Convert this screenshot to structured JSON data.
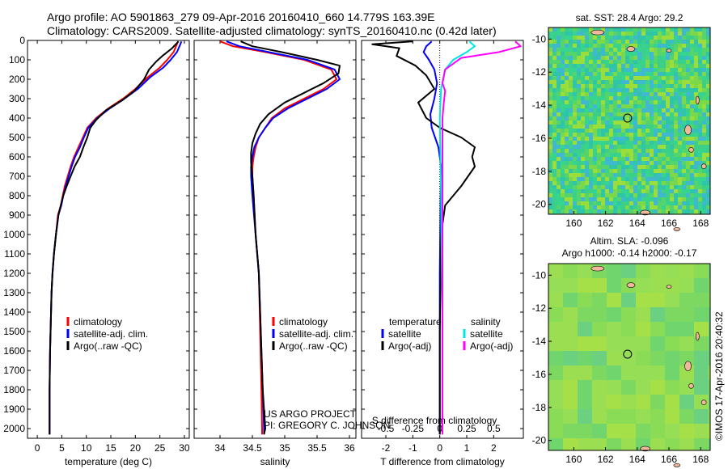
{
  "title_line1": "Argo profile: AO 5901863_279 09-Apr-2016 20160410_660 14.779S 163.39E",
  "title_line2": "Climatology: CARS2009. Satellite-adjusted climatology: synTS_20160410.nc (0.42d later)",
  "credit_lines": [
    "US ARGO PROJECT",
    "PI: GREGORY C. JOHNSON"
  ],
  "imos_stamp": "©IMOS 17-Apr-2016 20:40:32",
  "colors": {
    "climatology": "#ff0000",
    "satellite": "#0000ff",
    "argo": "#000000",
    "sal_satellite": "#00e5e5",
    "sal_argo": "#ff00ff"
  },
  "chart_data": [
    {
      "type": "line",
      "title": "",
      "xlabel": "temperature (deg C)",
      "ylabel": "",
      "xlim": [
        -2,
        31
      ],
      "ylim": [
        2050,
        0
      ],
      "xticks": [
        "0",
        "5",
        "10",
        "15",
        "20",
        "25",
        "30"
      ],
      "yticks": [
        "0",
        "100",
        "200",
        "300",
        "400",
        "500",
        "600",
        "700",
        "800",
        "900",
        "1000",
        "1100",
        "1200",
        "1300",
        "1400",
        "1500",
        "1600",
        "1700",
        "1800",
        "1900",
        "2000"
      ],
      "legend": [
        "climatology",
        "satellite-adj. clim.",
        "Argo(..raw -QC)"
      ],
      "legend_position": "bottom-center",
      "series": [
        {
          "name": "climatology",
          "color": "#ff0000",
          "x": [
            28.7,
            28.3,
            27.8,
            26.5,
            25,
            22.5,
            20,
            17.5,
            14.5,
            12,
            10.2,
            9.3,
            8.4,
            7.5,
            6.8,
            6.2,
            5.6,
            5.2,
            4.8,
            4.2,
            3.8,
            3.4,
            3.1,
            2.9,
            2.8,
            2.6,
            2.5,
            2.5
          ],
          "y": [
            5,
            30,
            60,
            100,
            140,
            190,
            250,
            300,
            350,
            400,
            450,
            500,
            550,
            600,
            650,
            700,
            750,
            800,
            850,
            900,
            1000,
            1100,
            1200,
            1300,
            1400,
            1600,
            1800,
            2030
          ]
        },
        {
          "name": "satellite-adj. clim.",
          "color": "#0000ff",
          "x": [
            29.4,
            29,
            28.5,
            27.2,
            25.7,
            23,
            20.5,
            17.8,
            14.8,
            12.2,
            10.4,
            9.5,
            8.7,
            7.7,
            7,
            6.4,
            5.8,
            5.3,
            4.9,
            4.3,
            3.8,
            3.4,
            3.1,
            2.9,
            2.8,
            2.6,
            2.5,
            2.5
          ],
          "y": [
            5,
            30,
            60,
            100,
            140,
            190,
            250,
            300,
            350,
            400,
            450,
            500,
            550,
            600,
            650,
            700,
            750,
            800,
            850,
            900,
            1000,
            1100,
            1200,
            1300,
            1400,
            1600,
            1800,
            2030
          ]
        },
        {
          "name": "Argo(..raw -QC)",
          "color": "#000000",
          "x": [
            28.8,
            27.5,
            25.5,
            24.2,
            22.8,
            21.8,
            19.8,
            17.2,
            14,
            12,
            10.8,
            10.2,
            9.4,
            8.7,
            7.6,
            6.8,
            6,
            5.3,
            4.8,
            4.3,
            3.8,
            3.4,
            3.1,
            2.9,
            2.8,
            2.6,
            2.5,
            2.5
          ],
          "y": [
            5,
            40,
            80,
            110,
            150,
            200,
            260,
            310,
            360,
            410,
            450,
            500,
            550,
            600,
            650,
            700,
            750,
            800,
            850,
            900,
            1000,
            1100,
            1200,
            1300,
            1400,
            1600,
            1800,
            2030
          ]
        }
      ]
    },
    {
      "type": "line",
      "title": "",
      "xlabel": "salinity",
      "ylabel": "",
      "xlim": [
        33.6,
        36.1
      ],
      "ylim": [
        2050,
        0
      ],
      "xticks": [
        "34",
        "34.5",
        "35",
        "35.5",
        "36"
      ],
      "legend": [
        "climatology",
        "satellite-adj. clim.",
        "Argo(..raw -QC)"
      ],
      "legend_position": "bottom-right",
      "series": [
        {
          "name": "climatology",
          "color": "#ff0000",
          "x": [
            34.0,
            34.2,
            34.7,
            35.3,
            35.72,
            35.8,
            35.6,
            35.3,
            35.0,
            34.8,
            34.7,
            34.6,
            34.55,
            34.52,
            34.5,
            34.5,
            34.52,
            34.55,
            34.6,
            34.62,
            34.64,
            34.65,
            34.65
          ],
          "y": [
            5,
            30,
            60,
            100,
            150,
            200,
            250,
            300,
            350,
            400,
            450,
            500,
            550,
            600,
            650,
            700,
            800,
            1000,
            1200,
            1500,
            1800,
            2000,
            2030
          ]
        },
        {
          "name": "satellite-adj. clim.",
          "color": "#0000ff",
          "x": [
            34.1,
            34.3,
            34.75,
            35.35,
            35.77,
            35.85,
            35.65,
            35.35,
            35.05,
            34.82,
            34.7,
            34.6,
            34.53,
            34.5,
            34.48,
            34.48,
            34.5,
            34.55,
            34.6,
            34.63,
            34.66,
            34.68,
            34.68
          ],
          "y": [
            5,
            30,
            60,
            100,
            150,
            200,
            250,
            300,
            350,
            400,
            450,
            500,
            550,
            600,
            650,
            700,
            800,
            1000,
            1200,
            1500,
            1800,
            2000,
            2030
          ]
        },
        {
          "name": "Argo(..raw -QC)",
          "color": "#000000",
          "x": [
            34.32,
            34.5,
            34.95,
            35.5,
            35.85,
            35.83,
            35.6,
            35.3,
            35.0,
            34.75,
            34.62,
            34.55,
            34.5,
            34.48,
            34.48,
            34.5,
            34.52,
            34.55,
            34.6,
            34.63,
            34.66,
            34.68,
            34.7,
            34.68
          ],
          "y": [
            5,
            30,
            60,
            100,
            130,
            170,
            220,
            270,
            320,
            380,
            430,
            480,
            530,
            580,
            630,
            700,
            800,
            1000,
            1200,
            1500,
            1800,
            1900,
            2000,
            2030
          ]
        }
      ]
    },
    {
      "type": "line",
      "title": "",
      "xlabel": "T difference from climatology",
      "xlabel_top": "S difference from climatology",
      "ylabel": "",
      "xlim": [
        -2.9,
        3.1
      ],
      "ylim": [
        2050,
        0
      ],
      "xticks": [
        "-2",
        "-1",
        "0",
        "1",
        "2"
      ],
      "xticks_s": [
        "-0.5",
        "-0.25",
        "0",
        "0.25",
        "0.5"
      ],
      "legend": [
        "temperature",
        "satellite",
        "Argo(-adj)",
        "salinity",
        "satellite",
        "Argo(-adj)"
      ],
      "legend_position": "bottom-center",
      "series": [
        {
          "name": "satellite",
          "color": "#0000ff",
          "x": [
            -0.3,
            -0.5,
            -0.6,
            -0.4,
            -0.2,
            -0.1,
            -0.2,
            -0.35,
            -0.3,
            -0.05,
            0.05,
            0.03,
            0.0,
            0.0,
            0.0
          ],
          "y": [
            5,
            30,
            60,
            100,
            150,
            220,
            300,
            380,
            450,
            550,
            650,
            800,
            1200,
            1600,
            2030
          ]
        },
        {
          "name": "Argo(-adj)",
          "color": "#000000",
          "x": [
            -1.0,
            -2.5,
            -1.5,
            -1.6,
            -0.9,
            -0.5,
            -0.2,
            -0.8,
            -0.5,
            0.0,
            0.8,
            1.3,
            1.2,
            1.3,
            0.8,
            0.2,
            0.05,
            0.0,
            0.0
          ],
          "y": [
            5,
            20,
            40,
            80,
            130,
            180,
            250,
            320,
            400,
            450,
            500,
            550,
            600,
            650,
            750,
            850,
            1000,
            1500,
            2030
          ]
        },
        {
          "name": "satellite (salinity)",
          "color": "#00e5e5",
          "x": [
            1.1,
            1.3,
            1.0,
            0.5,
            0.2,
            0.05,
            0.0,
            0.05,
            0.1,
            0.1
          ],
          "y": [
            5,
            30,
            60,
            100,
            150,
            250,
            400,
            800,
            1500,
            2030
          ]
        },
        {
          "name": "Argo(-adj) (salinity)",
          "color": "#ff00ff",
          "x": [
            2.8,
            3.0,
            2.2,
            0.8,
            0.2,
            0.1,
            0.2,
            0.15,
            0.1,
            0.1,
            0.1,
            0.1,
            0.1
          ],
          "y": [
            5,
            30,
            60,
            90,
            150,
            220,
            260,
            320,
            400,
            600,
            1000,
            1500,
            2030
          ]
        }
      ]
    },
    {
      "type": "heatmap",
      "title": "sat. SST: 28.4 Argo: 29.2",
      "xlim": [
        158.4,
        168.6
      ],
      "ylim": [
        -20.6,
        -9.3
      ],
      "xticks": [
        "160",
        "162",
        "164",
        "166",
        "168"
      ],
      "yticks": [
        "-10",
        "-12",
        "-14",
        "-16",
        "-18",
        "-20"
      ],
      "marker": {
        "lon": 163.39,
        "lat": -14.779
      }
    },
    {
      "type": "heatmap",
      "title": "Altim. SLA: -0.096",
      "subtitle": "Argo h1000: -0.14 h2000: -0.17",
      "xlim": [
        158.4,
        168.6
      ],
      "ylim": [
        -20.6,
        -9.3
      ],
      "xticks": [
        "160",
        "162",
        "164",
        "166",
        "168"
      ],
      "yticks": [
        "-10",
        "-12",
        "-14",
        "-16",
        "-18",
        "-20"
      ],
      "marker": {
        "lon": 163.39,
        "lat": -14.779
      }
    }
  ]
}
